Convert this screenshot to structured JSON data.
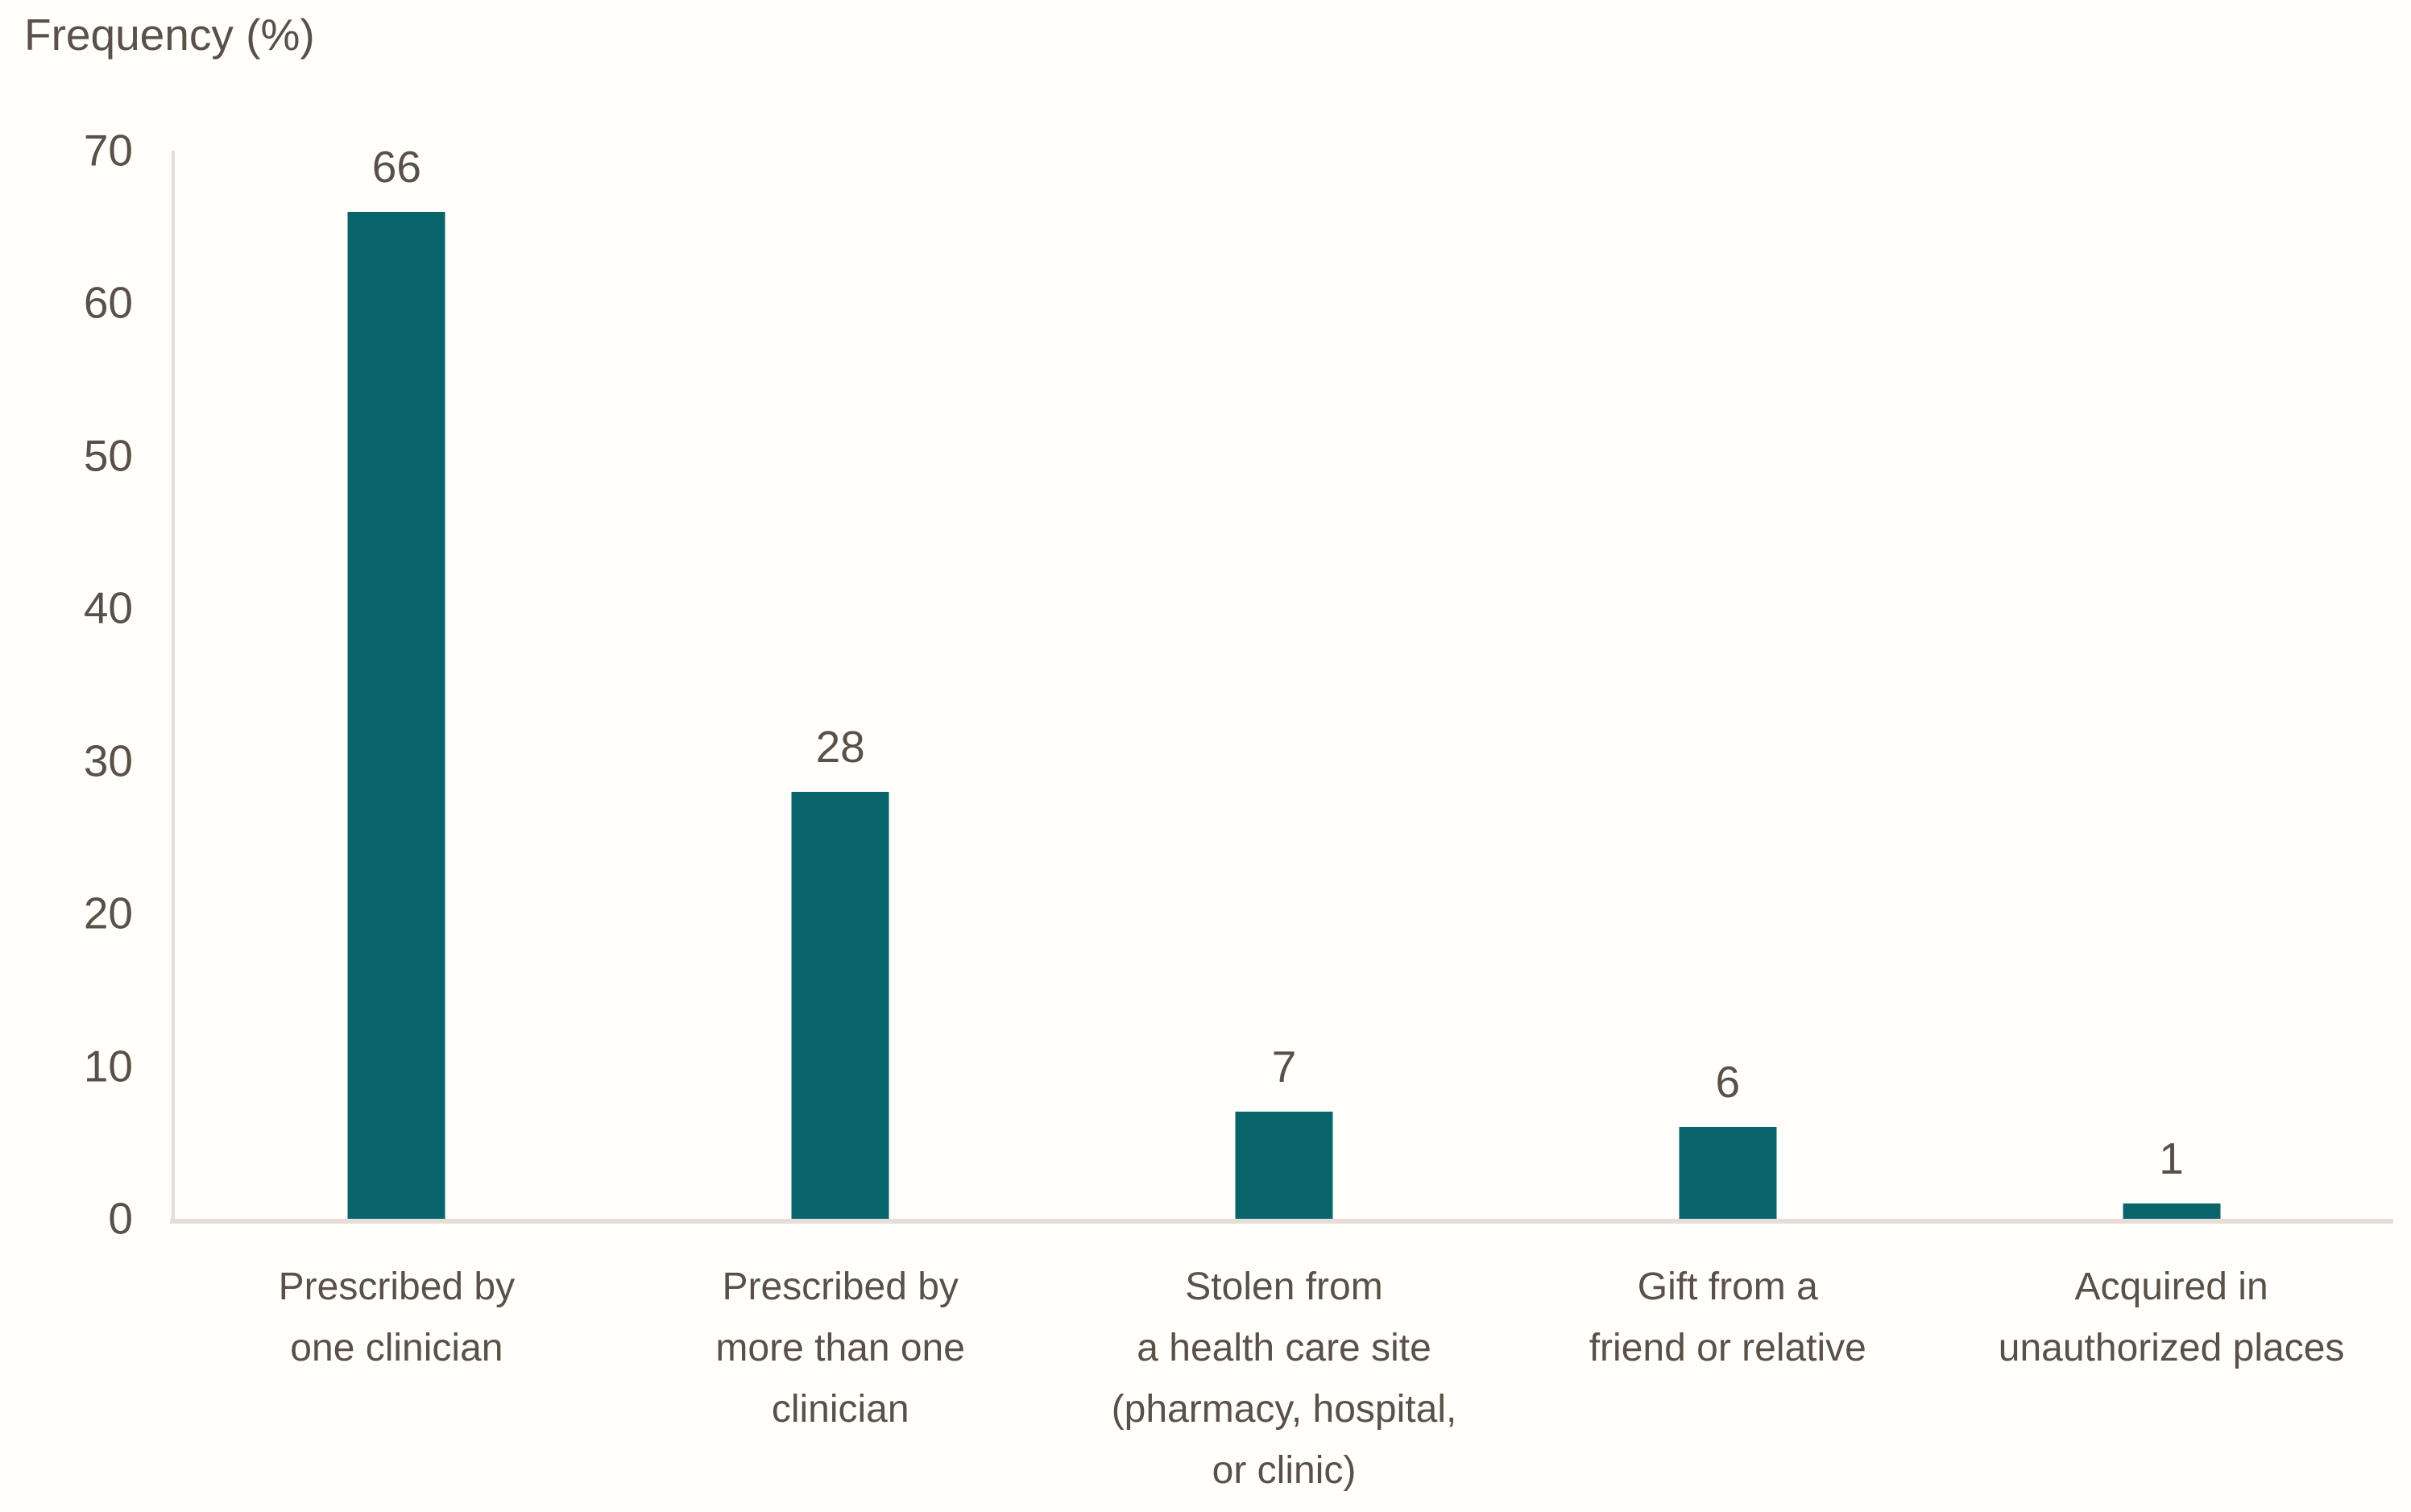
{
  "chart_data": {
    "type": "bar",
    "title": "Frequency (%)",
    "xlabel": "",
    "ylabel": "Frequency (%)",
    "ylim": [
      0,
      70
    ],
    "yticks": [
      0,
      10,
      20,
      30,
      40,
      50,
      60,
      70
    ],
    "grid": false,
    "legend": false,
    "categories": [
      "Prescribed by one clinician",
      "Prescribed by more than one clinician",
      "Stolen from a health care site (pharmacy, hospital, or clinic)",
      "Gift from a friend or relative",
      "Acquired in unauthorized places"
    ],
    "category_label_lines": [
      [
        "Prescribed by",
        "one clinician"
      ],
      [
        "Prescribed by",
        "more than one",
        "clinician"
      ],
      [
        "Stolen from",
        "a health care site",
        "(pharmacy, hospital,",
        "or clinic)"
      ],
      [
        "Gift from a",
        "friend or relative"
      ],
      [
        "Acquired in",
        "unauthorized places"
      ]
    ],
    "values": [
      66,
      28,
      7,
      6,
      1
    ],
    "colors": {
      "bar": "#09646C",
      "text": "#595049",
      "axis": "#E6DCD8",
      "background": "#FFFEFA"
    }
  }
}
